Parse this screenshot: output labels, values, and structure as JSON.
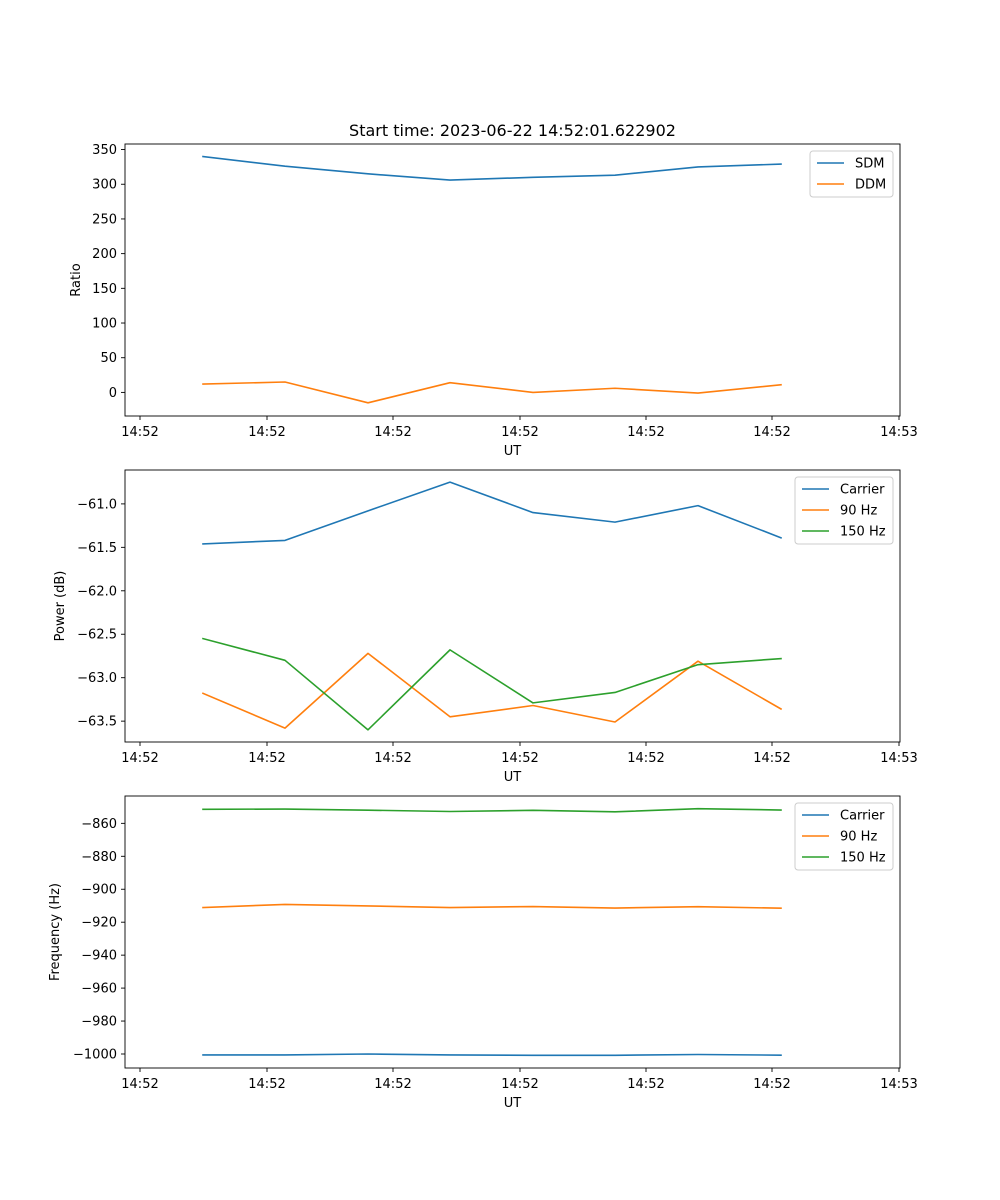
{
  "chart_data": [
    {
      "type": "line",
      "title": "Start time: 2023-06-22 14:52:01.622902",
      "xlabel": "UT",
      "ylabel": "Ratio",
      "x_tick_labels": [
        "14:52",
        "14:52",
        "14:52",
        "14:52",
        "14:52",
        "14:52",
        "14:52",
        "14:53"
      ],
      "y_ticks": [
        0,
        50,
        100,
        150,
        200,
        250,
        300,
        350
      ],
      "y_tick_labels": [
        "0",
        "50",
        "100",
        "150",
        "200",
        "250",
        "300",
        "350"
      ],
      "ylim": [
        -34,
        358
      ],
      "legend_position": "top-right",
      "grid": false,
      "series": [
        {
          "name": "SDM",
          "color": "#1f77b4",
          "values": [
            340,
            326,
            315,
            306,
            310,
            313,
            325,
            329
          ]
        },
        {
          "name": "DDM",
          "color": "#ff7f0e",
          "values": [
            12,
            15,
            -15,
            14,
            0,
            6,
            -1,
            11
          ]
        }
      ]
    },
    {
      "type": "line",
      "title": "",
      "xlabel": "UT",
      "ylabel": "Power (dB)",
      "x_tick_labels": [
        "14:52",
        "14:52",
        "14:52",
        "14:52",
        "14:52",
        "14:52",
        "14:52",
        "14:53"
      ],
      "y_ticks": [
        -63.5,
        -63.0,
        -62.5,
        -62.0,
        -61.5,
        -61.0
      ],
      "y_tick_labels": [
        "−63.5",
        "−63.0",
        "−62.5",
        "−62.0",
        "−61.5",
        "−61.0"
      ],
      "ylim": [
        -63.74,
        -60.61
      ],
      "legend_position": "top-right",
      "grid": false,
      "series": [
        {
          "name": "Carrier",
          "color": "#1f77b4",
          "values": [
            -61.46,
            -61.42,
            -61.08,
            -60.75,
            -61.1,
            -61.21,
            -61.02,
            -61.39
          ]
        },
        {
          "name": "90 Hz",
          "color": "#ff7f0e",
          "values": [
            -63.18,
            -63.58,
            -62.72,
            -63.45,
            -63.32,
            -63.51,
            -62.81,
            -63.36
          ]
        },
        {
          "name": "150 Hz",
          "color": "#2ca02c",
          "values": [
            -62.55,
            -62.8,
            -63.6,
            -62.68,
            -63.29,
            -63.17,
            -62.85,
            -62.78
          ]
        }
      ]
    },
    {
      "type": "line",
      "title": "",
      "xlabel": "UT",
      "ylabel": "Frequency (Hz)",
      "x_tick_labels": [
        "14:52",
        "14:52",
        "14:52",
        "14:52",
        "14:52",
        "14:52",
        "14:52",
        "14:53"
      ],
      "y_ticks": [
        -1000,
        -980,
        -960,
        -940,
        -920,
        -900,
        -880,
        -860
      ],
      "y_tick_labels": [
        "−1000",
        "−980",
        "−960",
        "−940",
        "−920",
        "−900",
        "−880",
        "−860"
      ],
      "ylim": [
        -1008.5,
        -843.4
      ],
      "legend_position": "top-right",
      "grid": false,
      "series": [
        {
          "name": "Carrier",
          "color": "#1f77b4",
          "values": [
            -1000.6,
            -1000.6,
            -1000.0,
            -1000.6,
            -1000.8,
            -1000.8,
            -1000.3,
            -1000.7
          ]
        },
        {
          "name": "90 Hz",
          "color": "#ff7f0e",
          "values": [
            -911.1,
            -909.2,
            -910.1,
            -911.1,
            -910.5,
            -911.4,
            -910.6,
            -911.5
          ]
        },
        {
          "name": "150 Hz",
          "color": "#2ca02c",
          "values": [
            -851.5,
            -851.3,
            -852.0,
            -852.8,
            -852.1,
            -853.0,
            -851.1,
            -851.9
          ]
        }
      ]
    }
  ]
}
